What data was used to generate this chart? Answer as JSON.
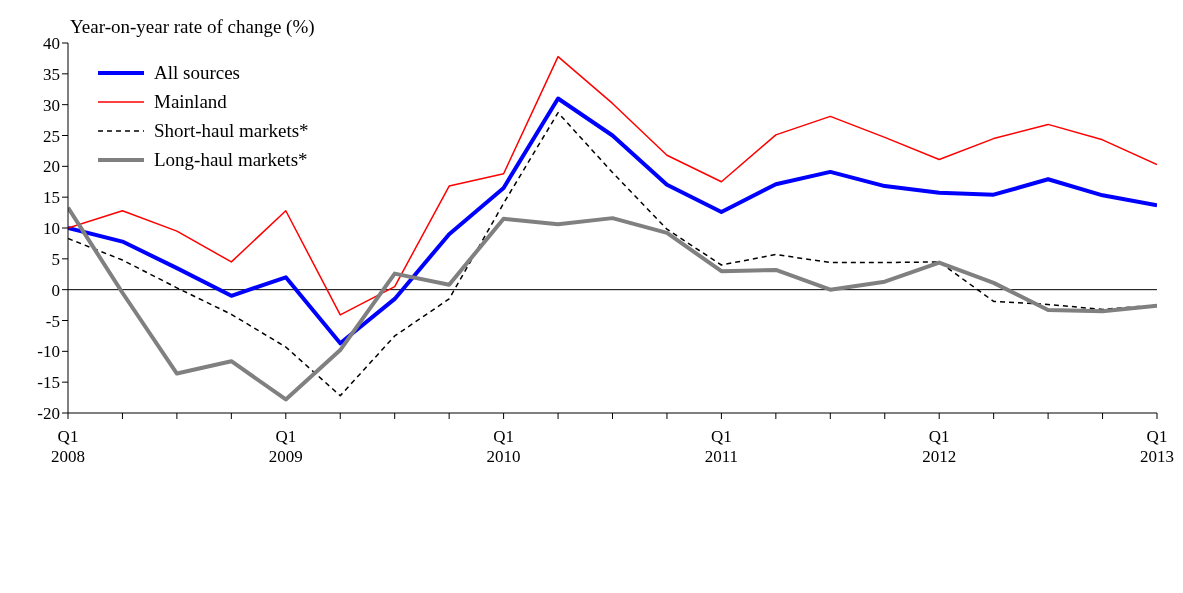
{
  "chart_data": {
    "type": "line",
    "ylabel": "Year-on-year rate of change (%)",
    "categories": [
      "Q1 2008",
      null,
      null,
      null,
      "Q1 2009",
      null,
      null,
      null,
      "Q1 2010",
      null,
      null,
      null,
      "Q1 2011",
      null,
      null,
      null,
      "Q1 2012",
      null,
      null,
      null,
      "Q1 2013"
    ],
    "series": [
      {
        "name": "All sources",
        "color": "#0000ff",
        "values": [
          10,
          7.8,
          3.5,
          -1,
          2,
          -8.7,
          -1.5,
          9,
          16.5,
          31,
          25,
          17,
          12.6,
          17.1,
          19.1,
          16.8,
          15.7,
          15.4,
          17.9,
          15.3,
          13.7
        ]
      },
      {
        "name": "Mainland",
        "color": "#ff0000",
        "values": [
          10,
          12.8,
          9.5,
          4.5,
          12.8,
          -4.1,
          0.5,
          16.8,
          18.8,
          37.8,
          30.2,
          21.8,
          17.5,
          25.1,
          28.1,
          24.7,
          21.1,
          24.5,
          26.8,
          24.3,
          20.3
        ]
      },
      {
        "name": "Short-haul markets*",
        "color": "#000000",
        "line_style": "dashed",
        "values": [
          8.3,
          4.8,
          0.3,
          -4,
          -9.3,
          -17.2,
          -7.5,
          -1.5,
          14,
          28.7,
          19,
          9.8,
          4,
          5.7,
          4.4,
          4.4,
          4.5,
          -1.9,
          -2.4,
          -3.2,
          -2.5
        ]
      },
      {
        "name": "Long-haul markets*",
        "color": "#808080",
        "values": [
          13.3,
          -0.5,
          -13.6,
          -11.6,
          -17.8,
          -9.8,
          2.6,
          0.8,
          11.5,
          10.6,
          11.6,
          9.2,
          3,
          3.2,
          0,
          1.3,
          4.4,
          1.1,
          -3.3,
          -3.5,
          -2.6
        ]
      }
    ],
    "ylim": [
      -20,
      40
    ],
    "yticks": [
      -20,
      -15,
      -10,
      -5,
      0,
      5,
      10,
      15,
      20,
      25,
      30,
      35,
      40
    ],
    "ref_lines": [
      {
        "axis": "y",
        "value": 0,
        "color": "#000000"
      }
    ],
    "grid": false,
    "legend": "top left",
    "marker": "none",
    "line_style": "solid"
  }
}
